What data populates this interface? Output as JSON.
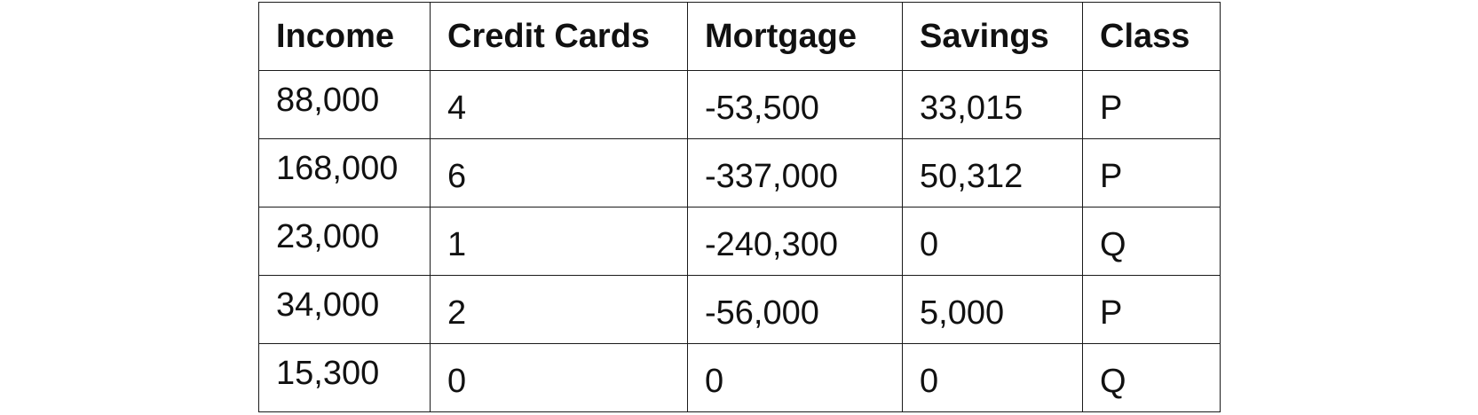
{
  "table": {
    "headers": [
      "Income",
      "Credit Cards",
      "Mortgage",
      "Savings",
      "Class"
    ],
    "rows": [
      [
        "88,000",
        "4",
        "-53,500",
        "33,015",
        "P"
      ],
      [
        "168,000",
        "6",
        "-337,000",
        "50,312",
        "P"
      ],
      [
        "23,000",
        "1",
        "-240,300",
        "0",
        "Q"
      ],
      [
        "34,000",
        "2",
        "-56,000",
        "5,000",
        "P"
      ],
      [
        "15,300",
        "0",
        "0",
        "0",
        "Q"
      ]
    ]
  }
}
